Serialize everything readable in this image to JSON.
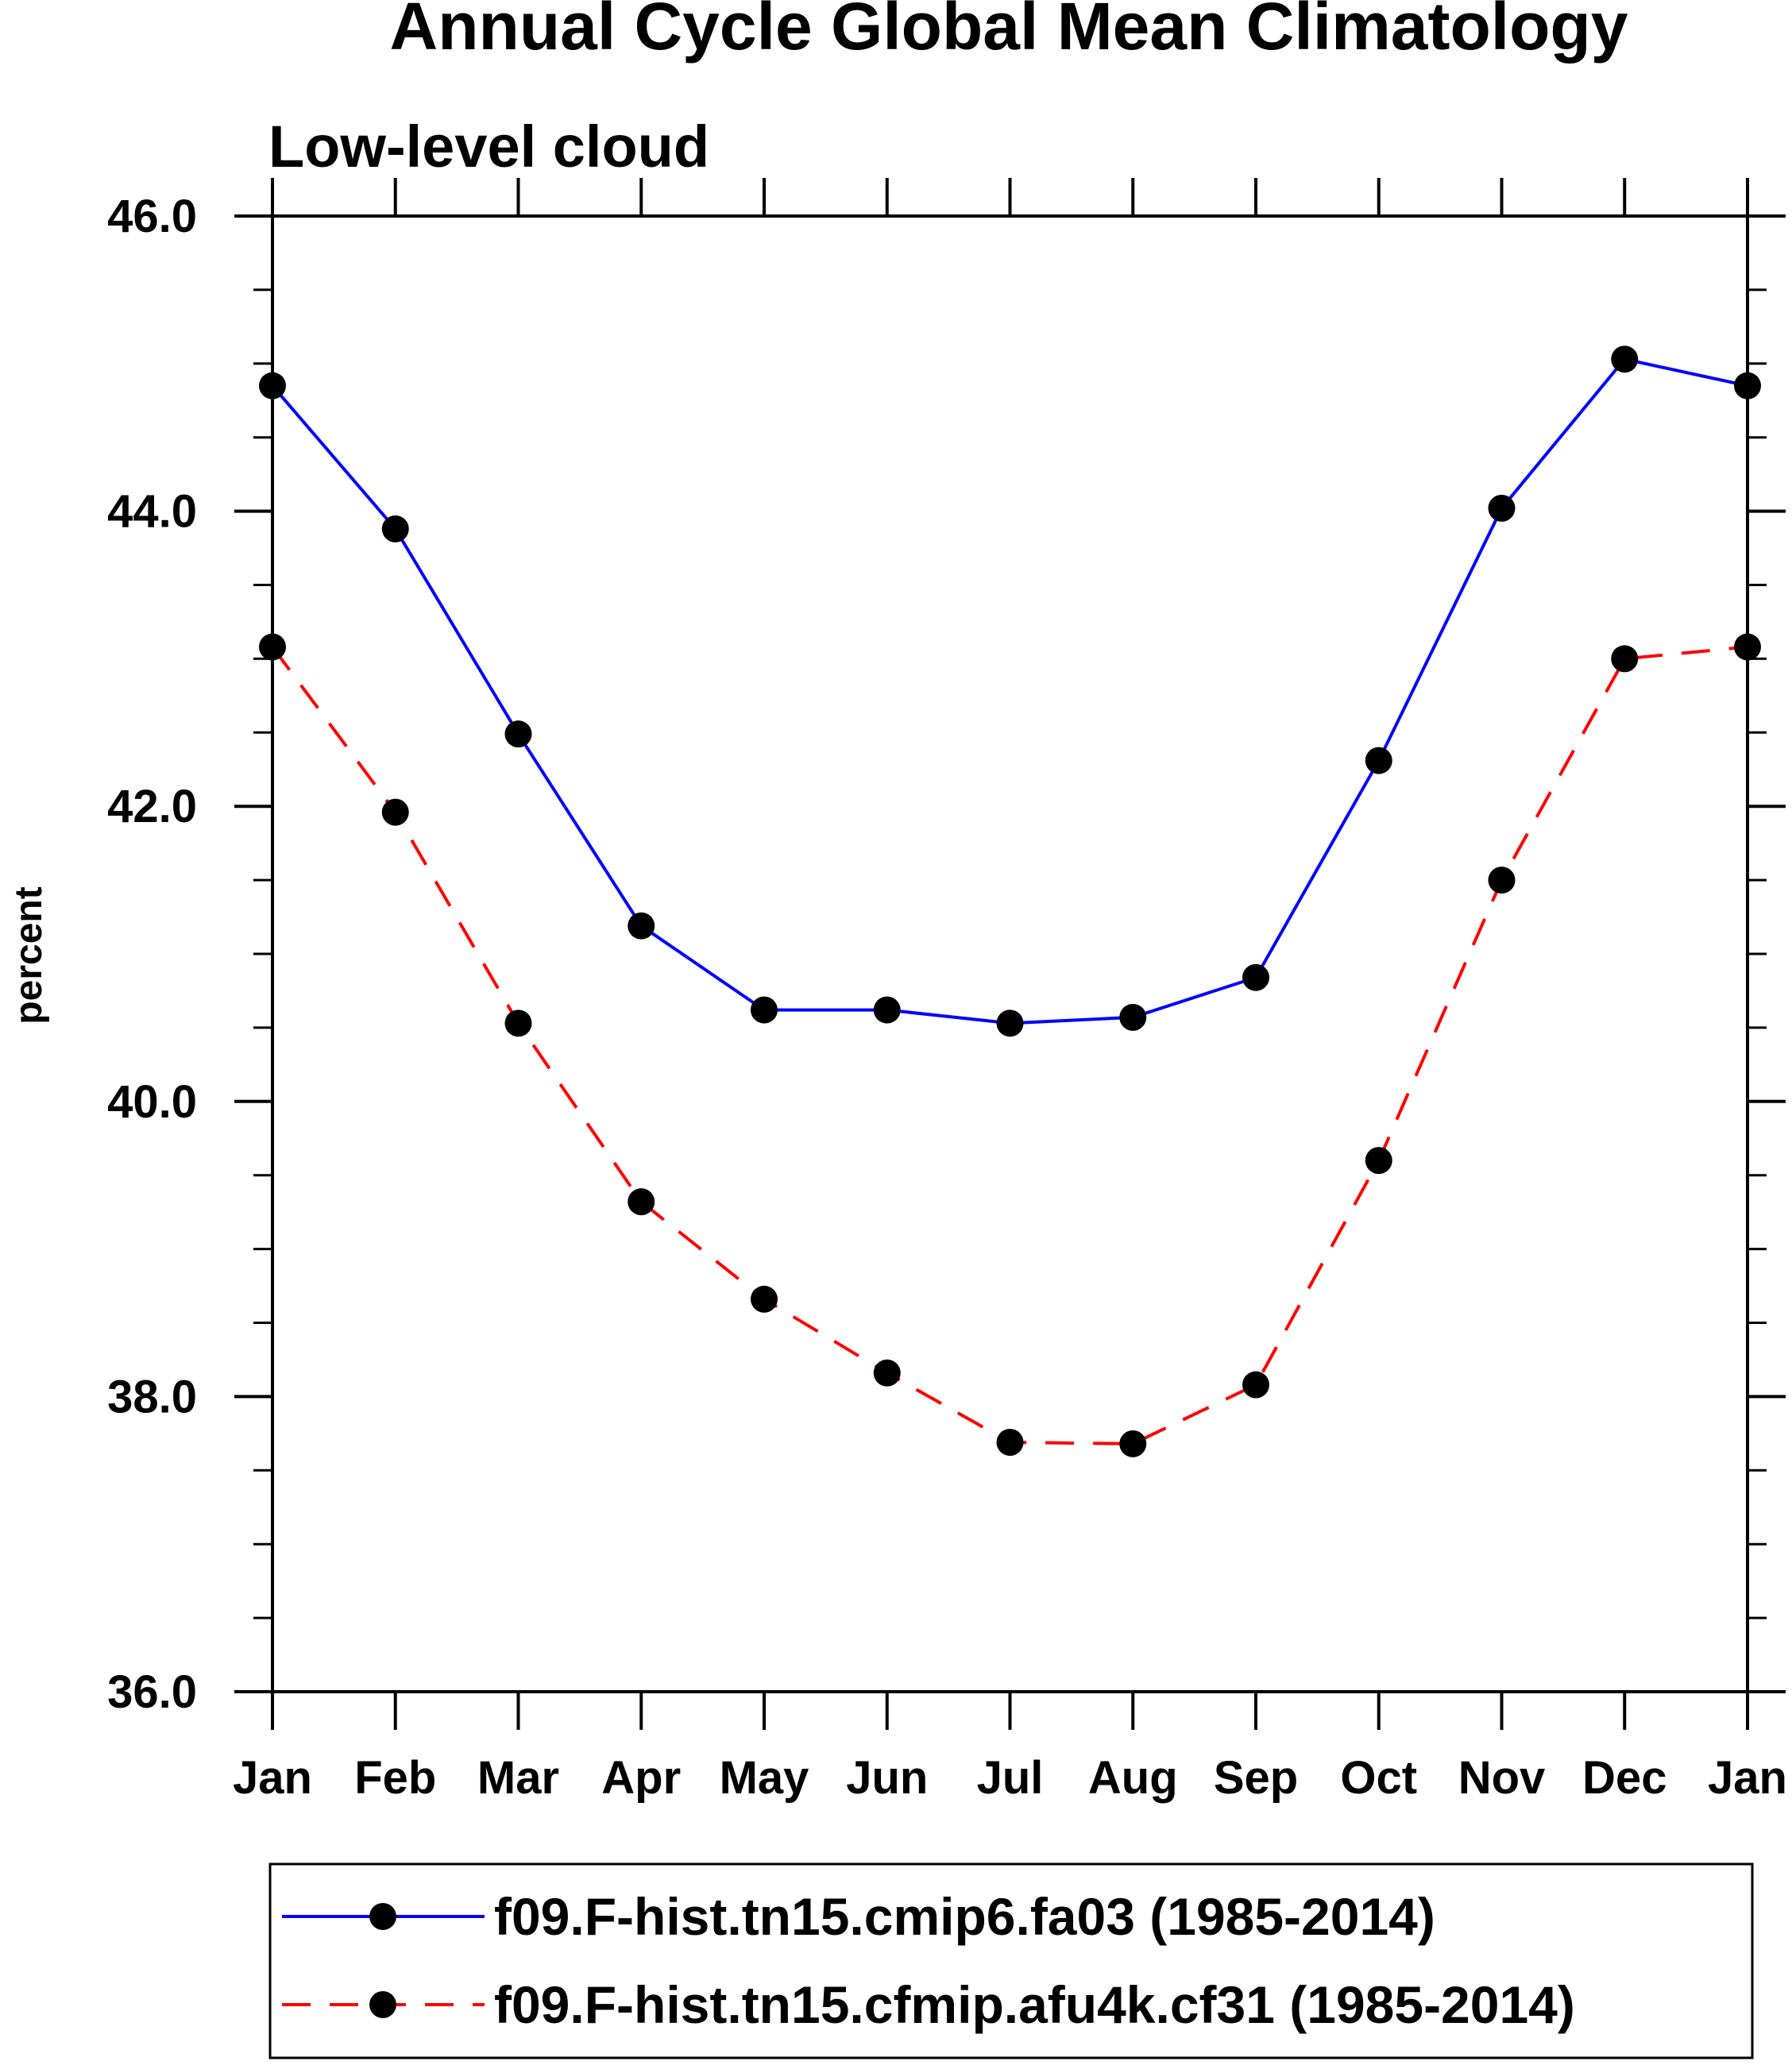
{
  "chart_data": {
    "type": "line",
    "title": "Annual Cycle Global Mean Climatology",
    "subtitle": "Low-level cloud",
    "xlabel": "",
    "ylabel": "percent",
    "categories": [
      "Jan",
      "Feb",
      "Mar",
      "Apr",
      "May",
      "Jun",
      "Jul",
      "Aug",
      "Sep",
      "Oct",
      "Nov",
      "Dec",
      "Jan"
    ],
    "ylim": [
      36.0,
      46.0
    ],
    "yticks": [
      "36.0",
      "38.0",
      "40.0",
      "42.0",
      "44.0",
      "46.0"
    ],
    "grid": false,
    "legend_position": "bottom",
    "series": [
      {
        "name": "f09.F-hist.tn15.cmip6.fa03 (1985-2014)",
        "color": "#0000ff",
        "line_style": "solid",
        "marker": "filled-circle",
        "values": [
          44.85,
          43.88,
          42.49,
          41.19,
          40.62,
          40.62,
          40.53,
          40.57,
          40.84,
          42.31,
          44.02,
          45.03,
          44.85
        ]
      },
      {
        "name": "f09.F-hist.tn15.cfmip.afu4k.cf31 (1985-2014)",
        "color": "#ff0000",
        "line_style": "dashed",
        "marker": "filled-circle",
        "values": [
          43.08,
          41.96,
          40.53,
          39.32,
          38.66,
          38.16,
          37.69,
          37.68,
          38.08,
          39.6,
          41.5,
          43.0,
          43.08
        ]
      }
    ]
  }
}
